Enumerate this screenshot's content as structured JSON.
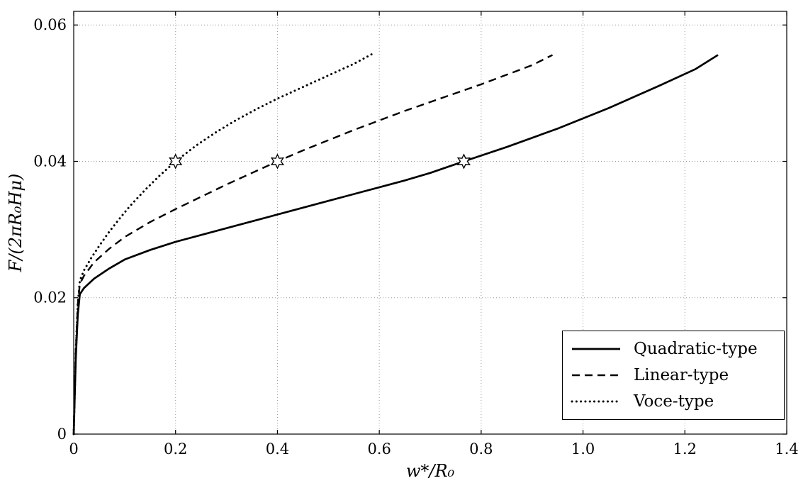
{
  "figure": {
    "background": "#ffffff"
  },
  "chart_data": {
    "type": "line",
    "title": "",
    "xlabel": "w*/R₀",
    "ylabel": "F/(2πR₀Hμ)",
    "xlim": [
      0,
      1.4
    ],
    "ylim": [
      0,
      0.062
    ],
    "xticks": [
      0,
      0.2,
      0.4,
      0.6,
      0.8,
      1.0,
      1.2,
      1.4
    ],
    "xtick_labels": [
      "0",
      "0.2",
      "0.4",
      "0.6",
      "0.8",
      "1.0",
      "1.2",
      "1.4"
    ],
    "yticks": [
      0,
      0.02,
      0.04,
      0.06
    ],
    "ytick_labels": [
      "0",
      "0.02",
      "0.04",
      "0.06"
    ],
    "grid": {
      "style": "dotted",
      "color": "#9a9a9a",
      "x_lines": [
        0.2,
        0.4,
        0.6,
        0.8,
        1.0,
        1.2
      ],
      "y_lines": [
        0.02,
        0.04,
        0.06
      ]
    },
    "axes_color": "#000000",
    "legend": {
      "position": "lower-right",
      "border_color": "#000000",
      "background": "#ffffff"
    },
    "series": [
      {
        "name": "Quadratic-type",
        "style": "solid",
        "color": "#000000",
        "x": [
          0,
          0.004,
          0.008,
          0.012,
          0.02,
          0.04,
          0.07,
          0.1,
          0.15,
          0.2,
          0.25,
          0.3,
          0.35,
          0.4,
          0.45,
          0.5,
          0.55,
          0.6,
          0.65,
          0.7,
          0.766,
          0.85,
          0.95,
          1.05,
          1.15,
          1.22,
          1.265
        ],
        "y": [
          0,
          0.011,
          0.0175,
          0.0205,
          0.0214,
          0.0228,
          0.0243,
          0.0256,
          0.027,
          0.0282,
          0.0292,
          0.0302,
          0.0312,
          0.0322,
          0.0332,
          0.0342,
          0.0352,
          0.0362,
          0.0372,
          0.0383,
          0.04,
          0.0421,
          0.0448,
          0.0478,
          0.0511,
          0.0535,
          0.0556
        ]
      },
      {
        "name": "Linear-type",
        "style": "dashed",
        "color": "#000000",
        "x": [
          0,
          0.004,
          0.008,
          0.012,
          0.02,
          0.04,
          0.07,
          0.1,
          0.15,
          0.2,
          0.25,
          0.3,
          0.35,
          0.4,
          0.45,
          0.5,
          0.55,
          0.6,
          0.65,
          0.7,
          0.75,
          0.8,
          0.85,
          0.9,
          0.94
        ],
        "y": [
          0,
          0.012,
          0.019,
          0.022,
          0.0232,
          0.0252,
          0.0272,
          0.0289,
          0.0311,
          0.033,
          0.0348,
          0.0366,
          0.0383,
          0.04,
          0.0416,
          0.0431,
          0.0446,
          0.046,
          0.0474,
          0.0487,
          0.05,
          0.0513,
          0.0527,
          0.0541,
          0.0556
        ]
      },
      {
        "name": "Voce-type",
        "style": "dotted",
        "color": "#000000",
        "x": [
          0,
          0.004,
          0.008,
          0.012,
          0.02,
          0.035,
          0.05,
          0.07,
          0.09,
          0.11,
          0.14,
          0.17,
          0.2,
          0.24,
          0.28,
          0.32,
          0.36,
          0.4,
          0.45,
          0.5,
          0.55,
          0.585
        ],
        "y": [
          0,
          0.012,
          0.019,
          0.0225,
          0.024,
          0.0259,
          0.0276,
          0.0297,
          0.0316,
          0.0334,
          0.0358,
          0.038,
          0.04,
          0.0423,
          0.0443,
          0.0461,
          0.0477,
          0.0492,
          0.0509,
          0.0526,
          0.0543,
          0.0557
        ]
      }
    ],
    "markers": {
      "shape": "six-pointed-star",
      "fill": "#ffffff",
      "stroke": "#000000",
      "points": [
        [
          0.2,
          0.04
        ],
        [
          0.4,
          0.04
        ],
        [
          0.766,
          0.04
        ]
      ]
    }
  }
}
